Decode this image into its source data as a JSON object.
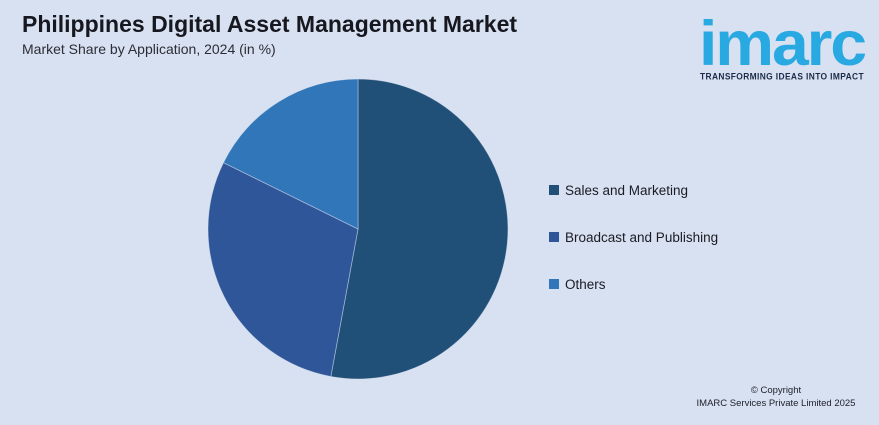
{
  "header": {
    "title": "Philippines Digital Asset Management Market",
    "subtitle": "Market Share by Application, 2024 (in %)"
  },
  "branding": {
    "logo_text": "imarc",
    "tagline": "TRANSFORMING IDEAS INTO IMPACT",
    "logo_color": "#29A9E1",
    "tagline_color": "#1B2B49"
  },
  "chart_data": {
    "type": "pie",
    "title": "Philippines Digital Asset Management Market",
    "subtitle": "Market Share by Application, 2024 (in %)",
    "unit": "%",
    "slices": [
      {
        "label": "Sales and Marketing",
        "value": 52.9,
        "color": "#204F78"
      },
      {
        "label": "Broadcast and Publishing",
        "value": 29.4,
        "color": "#2E5699"
      },
      {
        "label": "Others",
        "value": 17.7,
        "color": "#3076B8"
      }
    ],
    "start_angle_deg": 0,
    "direction": "clockwise",
    "legend_position": "right",
    "data_labels_shown": false
  },
  "footer": {
    "copyright_line1": "© Copyright",
    "copyright_line2": "IMARC Services Private Limited 2025"
  },
  "colors": {
    "background": "#D8E1F1"
  }
}
